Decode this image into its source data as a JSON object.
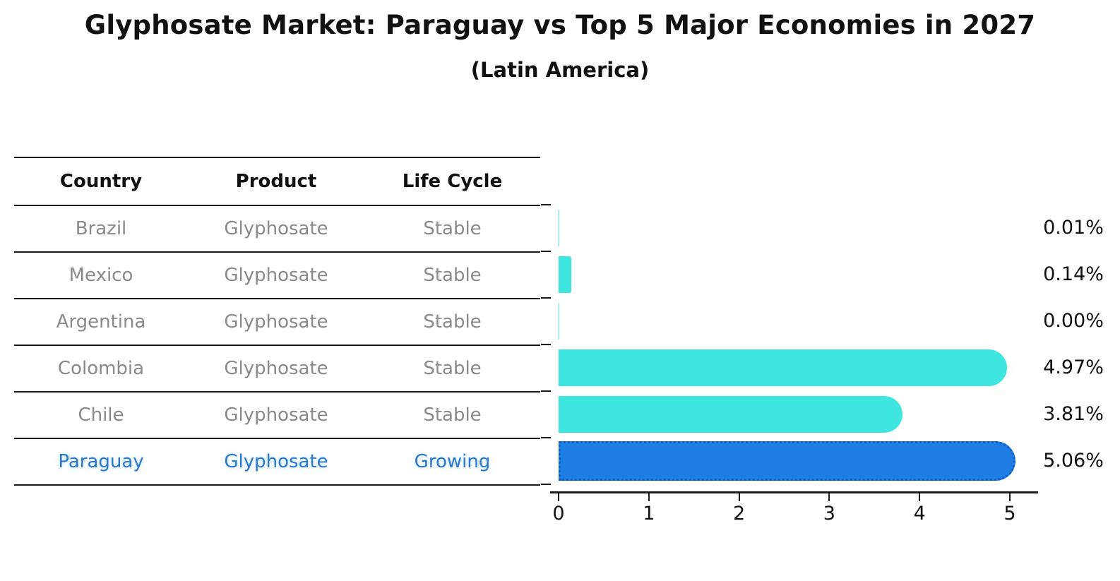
{
  "title": "Glyphosate Market: Paraguay vs Top 5 Major Economies in 2027",
  "subtitle": "(Latin America)",
  "table": {
    "headers": [
      "Country",
      "Product",
      "Life Cycle"
    ],
    "rows": [
      {
        "country": "Brazil",
        "product": "Glyphosate",
        "life_cycle": "Stable",
        "highlight": false
      },
      {
        "country": "Mexico",
        "product": "Glyphosate",
        "life_cycle": "Stable",
        "highlight": false
      },
      {
        "country": "Argentina",
        "product": "Glyphosate",
        "life_cycle": "Stable",
        "highlight": false
      },
      {
        "country": "Colombia",
        "product": "Glyphosate",
        "life_cycle": "Stable",
        "highlight": false
      },
      {
        "country": "Chile",
        "product": "Glyphosate",
        "life_cycle": "Stable",
        "highlight": false
      },
      {
        "country": "Paraguay",
        "product": "Glyphosate",
        "life_cycle": "Growing",
        "highlight": true
      }
    ]
  },
  "chart_data": {
    "type": "bar",
    "orientation": "horizontal",
    "title": "Glyphosate Market: Paraguay vs Top 5 Major Economies in 2027",
    "subtitle": "(Latin America)",
    "categories": [
      "Brazil",
      "Mexico",
      "Argentina",
      "Colombia",
      "Chile",
      "Paraguay"
    ],
    "values": [
      0.01,
      0.14,
      0.0,
      4.97,
      3.81,
      5.06
    ],
    "value_labels": [
      "0.01%",
      "0.14%",
      "0.00%",
      "4.97%",
      "3.81%",
      "5.06%"
    ],
    "units": "%",
    "x_ticks": [
      "0",
      "1",
      "2",
      "3",
      "4",
      "5"
    ],
    "xlim": [
      0,
      5.3
    ],
    "grid": false,
    "legend": false,
    "highlight_index": 5,
    "colors": {
      "bar_default": "#3FE5DF",
      "bar_highlight": "#1E7EE6",
      "bar_highlight_edge": "#0D5EC4",
      "table_text": "#8A8A8A",
      "highlight_text": "#2878D0",
      "axis": "#1A1A1A"
    }
  }
}
